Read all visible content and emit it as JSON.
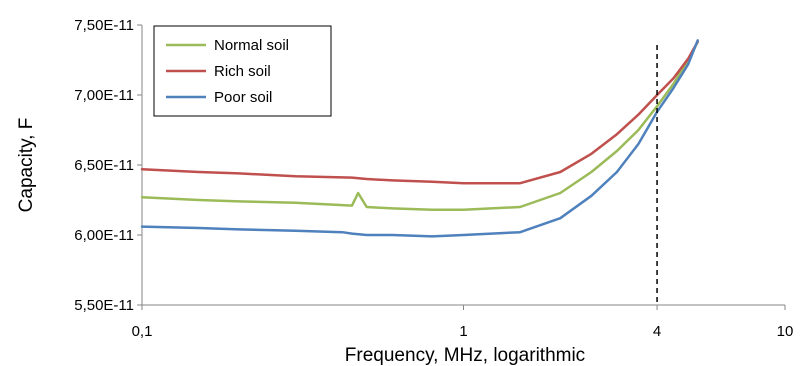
{
  "chart_data": {
    "type": "line",
    "xlabel": "Frequency, MHz, logarithmic",
    "ylabel": "Capacity, F",
    "x_scale": "log",
    "xlim": [
      0.1,
      10
    ],
    "ylim": [
      5.5e-11,
      7.5e-11
    ],
    "x_ticks": [
      0.1,
      1,
      4,
      10
    ],
    "x_tick_labels": [
      "0,1",
      "1",
      "4",
      "10"
    ],
    "y_ticks": [
      5.5e-11,
      6e-11,
      6.5e-11,
      7e-11,
      7.5e-11
    ],
    "y_tick_labels": [
      "5,50E-11",
      "6,00E-11",
      "6,50E-11",
      "7,00E-11",
      "7,50E-11"
    ],
    "grid": false,
    "legend_position": "top-left",
    "reference_lines": [
      {
        "x": 4,
        "style": "dashed",
        "label": "4"
      }
    ],
    "series": [
      {
        "name": "Normal soil",
        "color": "#9BBB59",
        "x": [
          0.1,
          0.15,
          0.2,
          0.3,
          0.45,
          0.47,
          0.5,
          0.6,
          0.8,
          1.0,
          1.5,
          2.0,
          2.5,
          3.0,
          3.5,
          4.0,
          4.5,
          5.0,
          5.35
        ],
        "y": [
          6.27e-11,
          6.25e-11,
          6.24e-11,
          6.23e-11,
          6.21e-11,
          6.3e-11,
          6.2e-11,
          6.19e-11,
          6.18e-11,
          6.18e-11,
          6.2e-11,
          6.3e-11,
          6.45e-11,
          6.6e-11,
          6.75e-11,
          6.92e-11,
          7.08e-11,
          7.25e-11,
          7.38e-11
        ]
      },
      {
        "name": "Rich soil",
        "color": "#C0504D",
        "x": [
          0.1,
          0.15,
          0.2,
          0.3,
          0.45,
          0.5,
          0.6,
          0.8,
          1.0,
          1.5,
          2.0,
          2.5,
          3.0,
          3.5,
          4.0,
          4.5,
          5.0,
          5.35
        ],
        "y": [
          6.47e-11,
          6.45e-11,
          6.44e-11,
          6.42e-11,
          6.41e-11,
          6.4e-11,
          6.39e-11,
          6.38e-11,
          6.37e-11,
          6.37e-11,
          6.45e-11,
          6.58e-11,
          6.72e-11,
          6.86e-11,
          7e-11,
          7.12e-11,
          7.26e-11,
          7.38e-11
        ]
      },
      {
        "name": "Poor soil",
        "color": "#4F81BD",
        "x": [
          0.1,
          0.15,
          0.2,
          0.3,
          0.42,
          0.45,
          0.5,
          0.6,
          0.8,
          1.0,
          1.5,
          2.0,
          2.5,
          3.0,
          3.5,
          4.0,
          4.5,
          5.0,
          5.35
        ],
        "y": [
          6.06e-11,
          6.05e-11,
          6.04e-11,
          6.03e-11,
          6.02e-11,
          6.01e-11,
          6e-11,
          6e-11,
          5.99e-11,
          6e-11,
          6.02e-11,
          6.12e-11,
          6.28e-11,
          6.45e-11,
          6.65e-11,
          6.88e-11,
          7.05e-11,
          7.22e-11,
          7.39e-11
        ]
      }
    ]
  }
}
